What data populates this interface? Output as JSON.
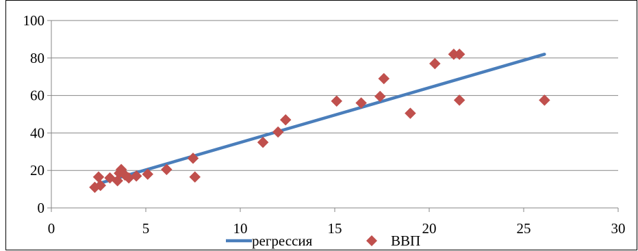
{
  "chart_data": {
    "type": "scatter",
    "title": "",
    "xlabel": "",
    "ylabel": "",
    "xlim": [
      0,
      30
    ],
    "ylim": [
      0,
      100
    ],
    "x_ticks": [
      0,
      5,
      10,
      15,
      20,
      25,
      30
    ],
    "y_ticks": [
      0,
      20,
      40,
      60,
      80,
      100
    ],
    "grid": "horizontal",
    "legend_position": "bottom",
    "series": [
      {
        "name": "регрессия",
        "kind": "line",
        "color": "#4a7ebb",
        "points": [
          [
            2.5,
            13
          ],
          [
            26.1,
            82
          ]
        ]
      },
      {
        "name": "ВВП",
        "kind": "scatter",
        "marker": "diamond",
        "color": "#c0504d",
        "points": [
          [
            2.3,
            11
          ],
          [
            2.6,
            12
          ],
          [
            2.5,
            16.5
          ],
          [
            3.1,
            16
          ],
          [
            3.5,
            14.5
          ],
          [
            3.6,
            18.5
          ],
          [
            3.7,
            20.5
          ],
          [
            3.9,
            17.5
          ],
          [
            4.1,
            16
          ],
          [
            4.5,
            17
          ],
          [
            5.1,
            18
          ],
          [
            6.1,
            20.5
          ],
          [
            7.5,
            26.5
          ],
          [
            7.6,
            16.5
          ],
          [
            11.2,
            35
          ],
          [
            12.0,
            40.5
          ],
          [
            12.4,
            47
          ],
          [
            15.1,
            57
          ],
          [
            16.4,
            56
          ],
          [
            17.4,
            59.5
          ],
          [
            17.6,
            69
          ],
          [
            19.0,
            50.5
          ],
          [
            20.3,
            77
          ],
          [
            21.3,
            82
          ],
          [
            21.6,
            82
          ],
          [
            21.6,
            57.5
          ],
          [
            26.1,
            57.5
          ]
        ]
      }
    ]
  }
}
